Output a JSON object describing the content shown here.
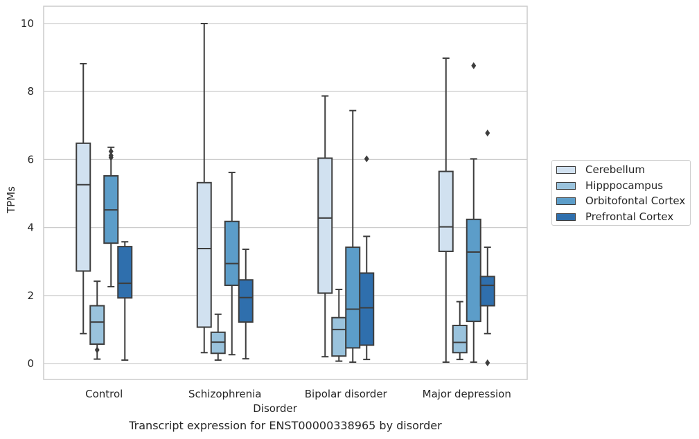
{
  "caption": "Transcript expression for ENST00000338965 by disorder",
  "chart_data": {
    "type": "boxplot",
    "xlabel": "Disorder",
    "ylabel": "TPMs",
    "ylim": [
      -0.45,
      10.5
    ],
    "yticks": [
      0,
      2,
      4,
      6,
      8,
      10
    ],
    "grid": true,
    "legend_position": "right",
    "categories": [
      "Control",
      "Schizophrenia",
      "Bipolar disorder",
      "Major depression"
    ],
    "series": [
      {
        "name": "Cerebellum",
        "color": "#d1e1f0",
        "boxes": [
          {
            "whisker_low": 0.88,
            "q1": 2.72,
            "median": 5.26,
            "q3": 6.48,
            "whisker_high": 8.82,
            "outliers": []
          },
          {
            "whisker_low": 0.32,
            "q1": 1.07,
            "median": 3.38,
            "q3": 5.32,
            "whisker_high": 10.0,
            "outliers": []
          },
          {
            "whisker_low": 0.2,
            "q1": 2.07,
            "median": 4.28,
            "q3": 6.04,
            "whisker_high": 7.87,
            "outliers": []
          },
          {
            "whisker_low": 0.04,
            "q1": 3.3,
            "median": 4.02,
            "q3": 5.65,
            "whisker_high": 8.98,
            "outliers": []
          }
        ]
      },
      {
        "name": "Hipppocampus",
        "color": "#9ac3dd",
        "boxes": [
          {
            "whisker_low": 0.13,
            "q1": 0.57,
            "median": 1.22,
            "q3": 1.7,
            "whisker_high": 2.42,
            "outliers": [
              0.4
            ]
          },
          {
            "whisker_low": 0.1,
            "q1": 0.3,
            "median": 0.63,
            "q3": 0.92,
            "whisker_high": 1.45,
            "outliers": []
          },
          {
            "whisker_low": 0.07,
            "q1": 0.22,
            "median": 1.0,
            "q3": 1.35,
            "whisker_high": 2.18,
            "outliers": []
          },
          {
            "whisker_low": 0.12,
            "q1": 0.32,
            "median": 0.62,
            "q3": 1.12,
            "whisker_high": 1.82,
            "outliers": []
          }
        ]
      },
      {
        "name": "Orbitofontal Cortex",
        "color": "#5c9dc9",
        "boxes": [
          {
            "whisker_low": 2.26,
            "q1": 3.54,
            "median": 4.52,
            "q3": 5.52,
            "whisker_high": 6.36,
            "outliers": [
              6.06,
              6.12,
              6.24
            ]
          },
          {
            "whisker_low": 0.26,
            "q1": 2.3,
            "median": 2.94,
            "q3": 4.18,
            "whisker_high": 5.62,
            "outliers": []
          },
          {
            "whisker_low": 0.04,
            "q1": 0.46,
            "median": 1.6,
            "q3": 3.42,
            "whisker_high": 7.44,
            "outliers": []
          },
          {
            "whisker_low": 0.04,
            "q1": 1.24,
            "median": 3.28,
            "q3": 4.24,
            "whisker_high": 6.02,
            "outliers": [
              8.76
            ]
          }
        ]
      },
      {
        "name": "Prefrontal Cortex",
        "color": "#2f6fad",
        "boxes": [
          {
            "whisker_low": 0.1,
            "q1": 1.93,
            "median": 2.36,
            "q3": 3.44,
            "whisker_high": 3.58,
            "outliers": []
          },
          {
            "whisker_low": 0.14,
            "q1": 1.22,
            "median": 1.94,
            "q3": 2.46,
            "whisker_high": 3.36,
            "outliers": []
          },
          {
            "whisker_low": 0.12,
            "q1": 0.54,
            "median": 1.64,
            "q3": 2.66,
            "whisker_high": 3.74,
            "outliers": [
              6.02
            ]
          },
          {
            "whisker_low": 0.88,
            "q1": 1.7,
            "median": 2.3,
            "q3": 2.56,
            "whisker_high": 3.42,
            "outliers": [
              0.02,
              6.78
            ]
          }
        ]
      }
    ]
  }
}
